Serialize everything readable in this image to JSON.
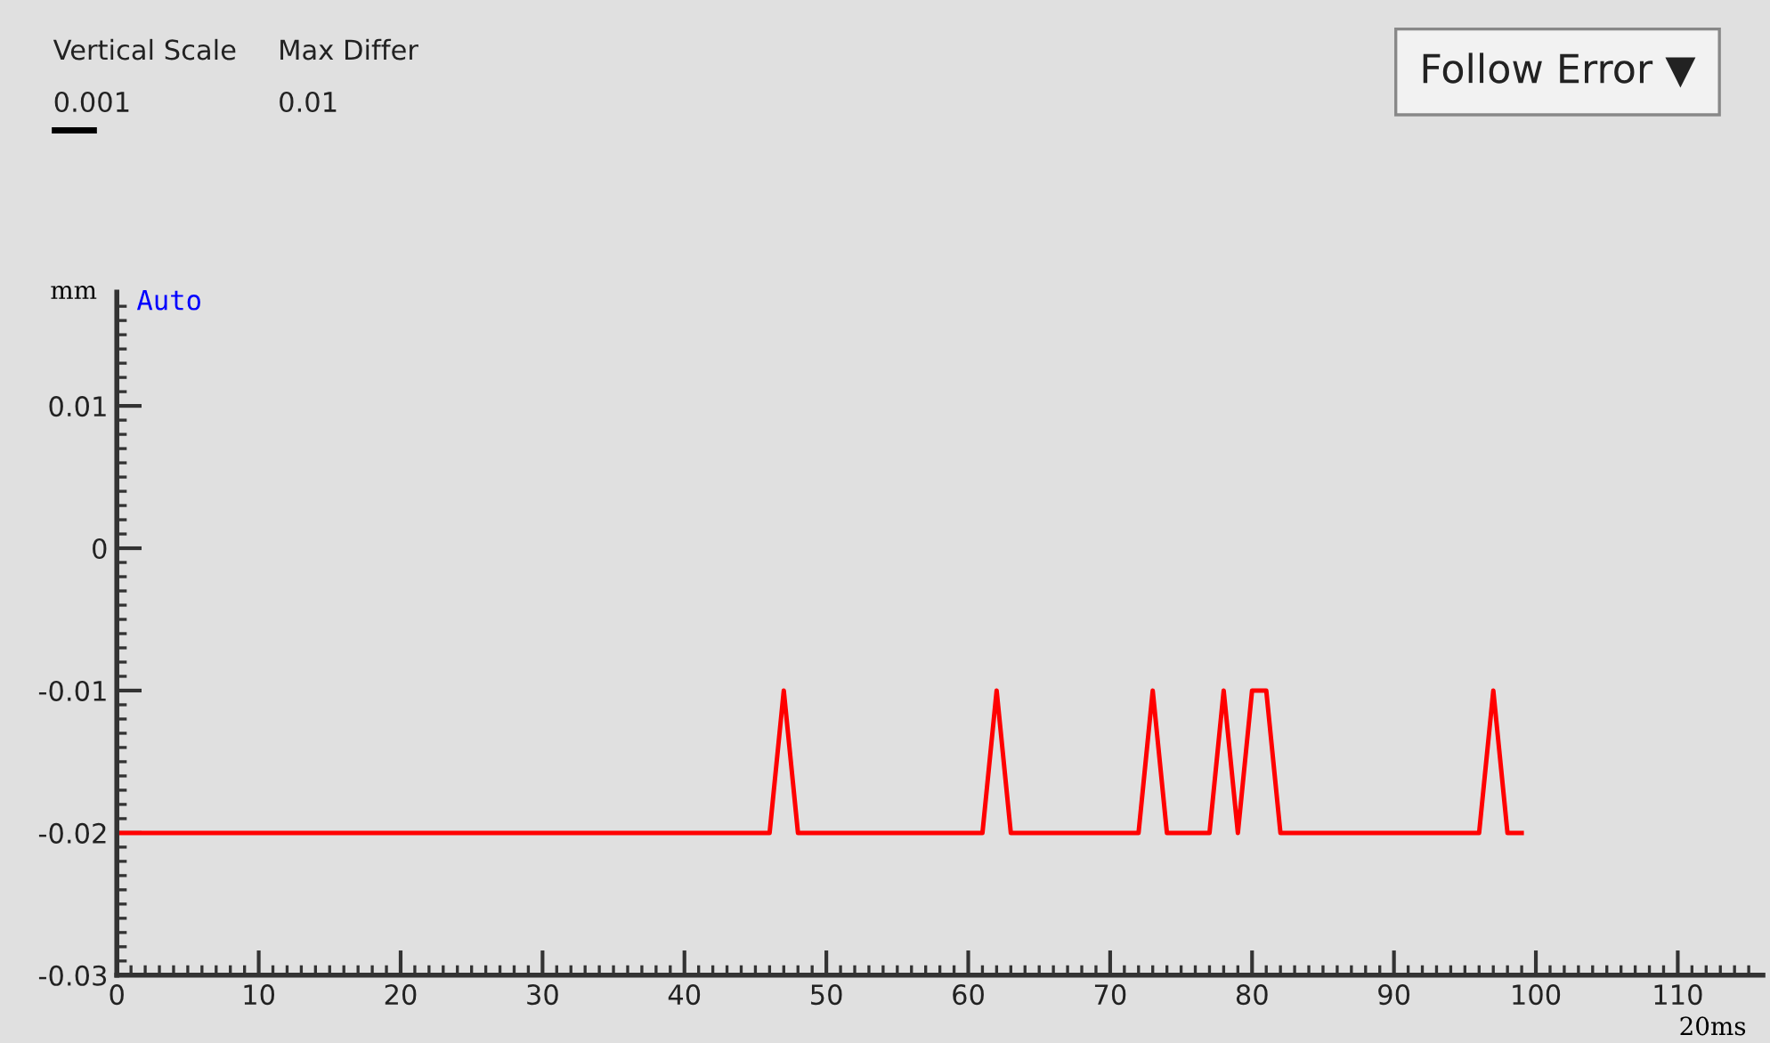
{
  "chart_data": {
    "type": "line",
    "ylabel": "mm",
    "xlabel": "20ms",
    "annotations": [
      "Vertical Scale",
      "Max Differ",
      "0.001",
      "0.01",
      "Follow Error ▼",
      "Auto"
    ],
    "x": [
      0,
      46,
      47,
      48,
      61,
      62,
      63,
      72,
      73,
      74,
      77,
      78,
      79,
      80,
      81,
      82,
      96,
      97,
      98,
      99
    ],
    "series": [
      {
        "color": "#ff0000",
        "values": [
          -0.02,
          -0.02,
          -0.01,
          -0.02,
          -0.02,
          -0.01,
          -0.02,
          -0.02,
          -0.01,
          -0.02,
          -0.02,
          -0.01,
          -0.02,
          -0.01,
          -0.01,
          -0.02,
          -0.02,
          -0.01,
          -0.02,
          -0.02
        ]
      }
    ],
    "xlim": [
      0,
      116
    ],
    "ylim": [
      -0.03,
      0.018
    ],
    "xticks": [
      0,
      10,
      20,
      30,
      40,
      50,
      60,
      70,
      80,
      90,
      100,
      110
    ],
    "yticks": [
      0.01,
      0,
      -0.01,
      -0.02,
      -0.03
    ],
    "grid": false,
    "legend": false,
    "marker": "none",
    "line_style": "solid"
  }
}
